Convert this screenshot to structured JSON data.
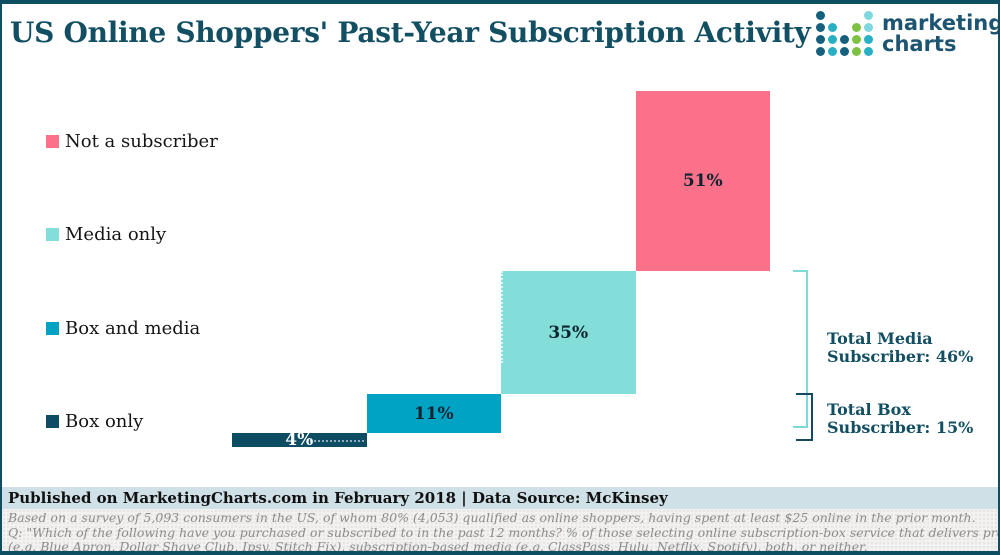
{
  "header": {
    "title": "US Online Shoppers' Past-Year Subscription Activity",
    "logo": {
      "line1": "marketing",
      "line2": "charts",
      "dots": [
        [
          "dark",
          null,
          null,
          null,
          "light"
        ],
        [
          "dark",
          "teal",
          null,
          "green",
          "light"
        ],
        [
          "dark",
          "teal",
          "dark",
          "green",
          "teal"
        ],
        [
          "dark",
          "teal",
          "dark",
          "green",
          "teal"
        ]
      ]
    }
  },
  "legend": {
    "items": [
      {
        "label": "Not a subscriber",
        "color": "pink"
      },
      {
        "label": "Media only",
        "color": "light_teal"
      },
      {
        "label": "Box and media",
        "color": "teal"
      },
      {
        "label": "Box only",
        "color": "dark_teal"
      }
    ]
  },
  "chart_data": {
    "type": "bar",
    "subtype": "waterfall",
    "title": "US Online Shoppers' Past-Year Subscription Activity",
    "categories": [
      "Box only",
      "Box and media",
      "Media only",
      "Not a subscriber"
    ],
    "values": [
      4,
      11,
      35,
      51
    ],
    "cumulative_start": [
      0,
      4,
      15,
      50
    ],
    "labels": [
      "4%",
      "11%",
      "35%",
      "51%"
    ],
    "bar_colors": [
      "dark_teal",
      "teal",
      "light_teal",
      "pink"
    ],
    "ylim": [
      0,
      101
    ],
    "grid": false,
    "legend_position": "left",
    "annotations": [
      "Total Media Subscriber: 46%",
      "Total Box Subscriber: 15%"
    ]
  },
  "annotations": {
    "media": {
      "line1": "Total Media",
      "line2": "Subscriber: 46%"
    },
    "box": {
      "line1": "Total Box",
      "line2": "Subscriber: 15%"
    }
  },
  "footer": {
    "published": "Published on MarketingCharts.com in February 2018 | Data Source: McKinsey",
    "fineprint": [
      "Based on a survey of 5,093 consumers in the US, of whom 80% (4,053) qualified as online shoppers, having spent at least $25 online in the prior month.",
      "Q: \"Which of the following have you purchased or subscribed to in the past 12 months? % of those selecting online subscription-box service that delivers products regularly",
      "(e.g. Blue Apron, Dollar Shave Club, Ipsy, Stitch Fix), subscription-based media (e.g. ClassPass, Hulu, Netflix, Spotify), both, or neither."
    ]
  },
  "colors": {
    "pink": "#fb7189",
    "light_teal": "#83ddd8",
    "teal": "#00a3c4",
    "dark_teal": "#0d4c63",
    "title_text": "#134f63",
    "bar_label_dark": "#0c2430",
    "bracket_teal": "#7fd8d4",
    "bracket_dark": "#134a5f",
    "published_bg": "#cfe0e7",
    "fineprint_bg": "#f2f1ef",
    "fineprint_text": "#8a8a8a",
    "border": "#0d4e63",
    "logo_dark": "#16607e",
    "logo_teal": "#27b0c4",
    "logo_green": "#7dc242",
    "logo_light": "#7fd8dd",
    "logo_text": "#1d5471"
  }
}
